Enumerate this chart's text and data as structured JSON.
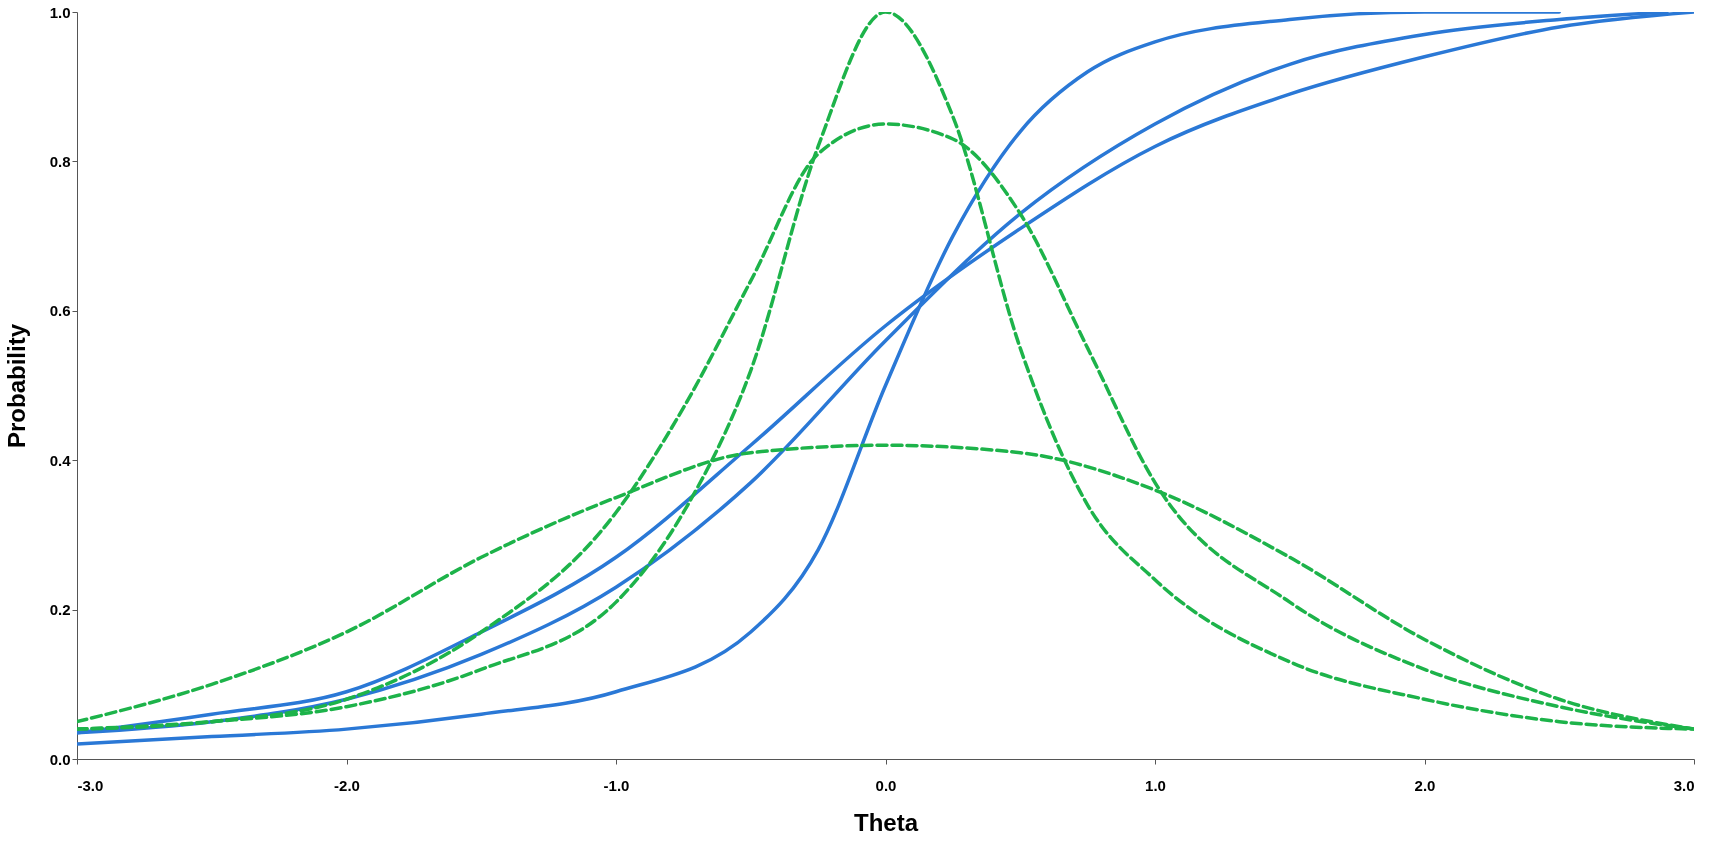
{
  "chart_data": {
    "type": "line",
    "xlabel": "Theta",
    "ylabel": "Probability",
    "xlim": [
      -3,
      3
    ],
    "ylim": [
      0,
      1
    ],
    "xticks": [
      {
        "value": -3,
        "label": "-3.0"
      },
      {
        "value": -2,
        "label": "-2.0"
      },
      {
        "value": -1,
        "label": "-1.0"
      },
      {
        "value": 0,
        "label": "0.0"
      },
      {
        "value": 1,
        "label": "1.0"
      },
      {
        "value": 2,
        "label": "2.0"
      },
      {
        "value": 3,
        "label": "3.0"
      }
    ],
    "yticks": [
      {
        "value": 0,
        "label": "0.0"
      },
      {
        "value": 0.2,
        "label": "0.2"
      },
      {
        "value": 0.4,
        "label": "0.4"
      },
      {
        "value": 0.6,
        "label": "0.6"
      },
      {
        "value": 0.8,
        "label": "0.8"
      },
      {
        "value": 1,
        "label": "1.0"
      }
    ],
    "grid": false,
    "marker": "none",
    "series": [
      {
        "color": "#2a78d6",
        "line_style": "solid",
        "x": [
          -3,
          -2.5,
          -2,
          -1.5,
          -1,
          -0.5,
          -0.25,
          0,
          0.25,
          0.5,
          0.75,
          1,
          1.5,
          2,
          2.5
        ],
        "values": [
          0.02,
          0.03,
          0.04,
          0.06,
          0.09,
          0.17,
          0.28,
          0.5,
          0.7,
          0.84,
          0.92,
          0.96,
          0.99,
          1.0,
          1.0
        ]
      },
      {
        "color": "#2a78d6",
        "line_style": "solid",
        "x": [
          -3,
          -2.5,
          -2,
          -1.5,
          -1,
          -0.5,
          0,
          0.5,
          1,
          1.5,
          2,
          2.5,
          2.9
        ],
        "values": [
          0.035,
          0.05,
          0.08,
          0.14,
          0.23,
          0.37,
          0.56,
          0.73,
          0.85,
          0.93,
          0.97,
          0.99,
          1.0
        ]
      },
      {
        "color": "#2a78d6",
        "line_style": "solid",
        "x": [
          -3,
          -2.5,
          -2,
          -1.5,
          -1,
          -0.5,
          0,
          0.5,
          1,
          1.5,
          2,
          2.5,
          3
        ],
        "values": [
          0.035,
          0.06,
          0.09,
          0.17,
          0.27,
          0.42,
          0.58,
          0.71,
          0.82,
          0.89,
          0.94,
          0.98,
          1.0
        ]
      },
      {
        "color": "#1db34a",
        "line_style": "dashed",
        "x": [
          -3,
          -2.5,
          -2,
          -1.5,
          -1,
          -0.75,
          -0.5,
          -0.25,
          0,
          0.25,
          0.5,
          0.75,
          1,
          1.5,
          2,
          2.5,
          3
        ],
        "values": [
          0.04,
          0.05,
          0.07,
          0.12,
          0.21,
          0.33,
          0.52,
          0.82,
          1.0,
          0.86,
          0.55,
          0.34,
          0.24,
          0.13,
          0.08,
          0.05,
          0.04
        ]
      },
      {
        "color": "#1db34a",
        "line_style": "dashed",
        "x": [
          -3,
          -2.5,
          -2,
          -1.5,
          -1,
          -0.75,
          -0.5,
          -0.25,
          0,
          0.25,
          0.5,
          0.75,
          1,
          1.5,
          2,
          2.5,
          3
        ],
        "values": [
          0.04,
          0.05,
          0.08,
          0.17,
          0.33,
          0.47,
          0.64,
          0.81,
          0.85,
          0.83,
          0.73,
          0.55,
          0.37,
          0.21,
          0.12,
          0.07,
          0.04
        ]
      },
      {
        "color": "#1db34a",
        "line_style": "dashed",
        "x": [
          -3,
          -2.5,
          -2,
          -1.5,
          -1,
          -0.5,
          0,
          0.5,
          1,
          1.5,
          2,
          2.5,
          3
        ],
        "values": [
          0.05,
          0.1,
          0.17,
          0.27,
          0.35,
          0.41,
          0.42,
          0.41,
          0.36,
          0.27,
          0.16,
          0.08,
          0.04
        ]
      }
    ]
  }
}
